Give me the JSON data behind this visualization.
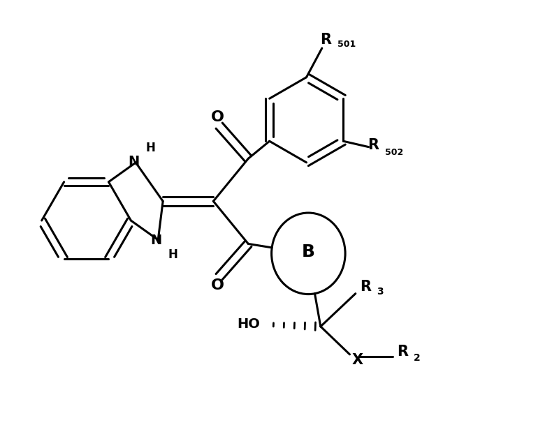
{
  "bg": "#ffffff",
  "lc": "#000000",
  "lw": 2.2,
  "fw": 7.8,
  "fh": 6.32,
  "dpi": 100,
  "xl": [
    0,
    14
  ],
  "yl": [
    0,
    11
  ]
}
